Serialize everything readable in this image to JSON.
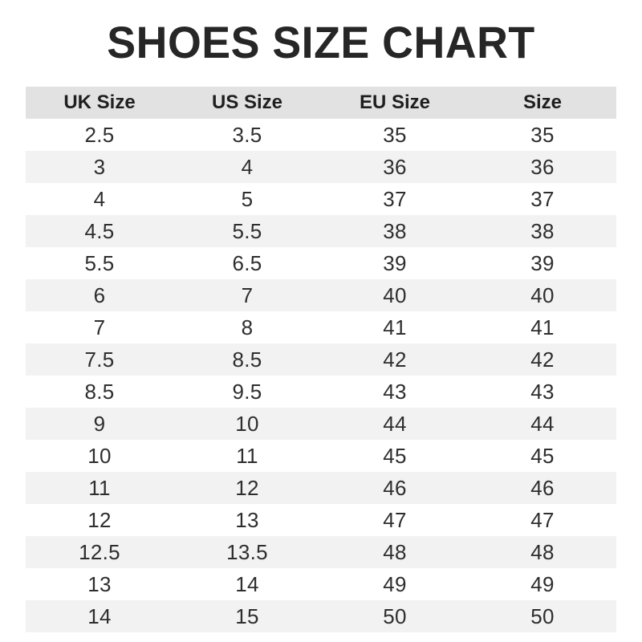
{
  "title": "SHOES SIZE CHART",
  "colors": {
    "header_bg": "#e2e2e2",
    "row_alt_bg": "#f2f2f2",
    "row_bg": "#ffffff",
    "title_text": "#262626",
    "cell_text": "#2e2e2e"
  },
  "chart_data": {
    "type": "table",
    "title": "SHOES SIZE CHART",
    "columns": [
      "UK Size",
      "US Size",
      "EU Size",
      "Size"
    ],
    "rows": [
      [
        "2.5",
        "3.5",
        "35",
        "35"
      ],
      [
        "3",
        "4",
        "36",
        "36"
      ],
      [
        "4",
        "5",
        "37",
        "37"
      ],
      [
        "4.5",
        "5.5",
        "38",
        "38"
      ],
      [
        "5.5",
        "6.5",
        "39",
        "39"
      ],
      [
        "6",
        "7",
        "40",
        "40"
      ],
      [
        "7",
        "8",
        "41",
        "41"
      ],
      [
        "7.5",
        "8.5",
        "42",
        "42"
      ],
      [
        "8.5",
        "9.5",
        "43",
        "43"
      ],
      [
        "9",
        "10",
        "44",
        "44"
      ],
      [
        "10",
        "11",
        "45",
        "45"
      ],
      [
        "11",
        "12",
        "46",
        "46"
      ],
      [
        "12",
        "13",
        "47",
        "47"
      ],
      [
        "12.5",
        "13.5",
        "48",
        "48"
      ],
      [
        "13",
        "14",
        "49",
        "49"
      ],
      [
        "14",
        "15",
        "50",
        "50"
      ]
    ],
    "legend": null,
    "grid": false,
    "layout": "alternating-row-stripes, centered columns"
  }
}
